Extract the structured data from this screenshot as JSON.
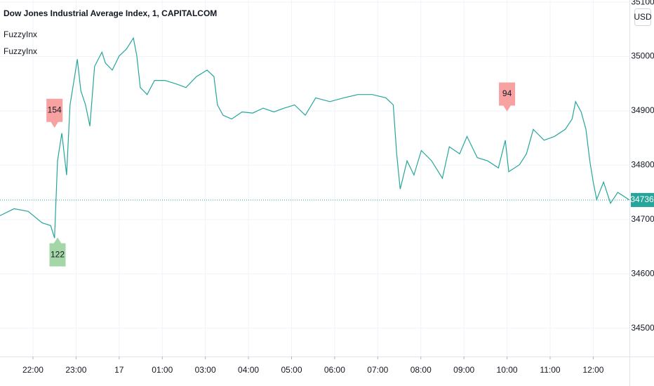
{
  "chart_data": {
    "type": "line",
    "title": "Dow Jones Industrial Average Index, 1, CAPITALCOM",
    "indicators": [
      "FuzzyInx",
      "FuzzyInx"
    ],
    "currency": "USD",
    "color": "#26a69a",
    "x": [
      0.23,
      0.56,
      0.89,
      1.21,
      1.41,
      1.5,
      1.57,
      1.67,
      1.78,
      1.86,
      1.94,
      2.03,
      2.11,
      2.22,
      2.32,
      2.43,
      2.6,
      2.68,
      2.84,
      3.0,
      3.17,
      3.33,
      3.41,
      3.49,
      3.65,
      3.82,
      4.06,
      4.31,
      4.55,
      4.79,
      5.04,
      5.2,
      5.28,
      5.41,
      5.61,
      5.85,
      6.1,
      6.34,
      6.59,
      6.83,
      7.07,
      7.32,
      7.56,
      7.89,
      8.21,
      8.54,
      8.87,
      9.19,
      9.36,
      9.44,
      9.52,
      9.68,
      9.84,
      10.01,
      10.25,
      10.5,
      10.66,
      10.9,
      11.07,
      11.31,
      11.55,
      11.8,
      11.96,
      12.04,
      12.29,
      12.45,
      12.61,
      12.86,
      13.1,
      13.35,
      13.51,
      13.59,
      13.72,
      13.83,
      13.92,
      14.0,
      14.08,
      14.24,
      14.4,
      14.57,
      14.84
    ],
    "values": [
      34707,
      34720,
      34715,
      34694,
      34689,
      34666,
      34808,
      34859,
      34782,
      34911,
      34950,
      34995,
      34937,
      34911,
      34872,
      34982,
      35008,
      34988,
      34975,
      35001,
      35014,
      35034,
      35001,
      34943,
      34930,
      34956,
      34956,
      34950,
      34943,
      34963,
      34975,
      34963,
      34911,
      34892,
      34885,
      34898,
      34896,
      34905,
      34898,
      34905,
      34911,
      34892,
      34924,
      34917,
      34924,
      34930,
      34930,
      34924,
      34911,
      34821,
      34756,
      34808,
      34782,
      34827,
      34808,
      34776,
      34834,
      34821,
      34853,
      34814,
      34808,
      34795,
      34846,
      34788,
      34801,
      34821,
      34866,
      34846,
      34853,
      34866,
      34885,
      34917,
      34898,
      34866,
      34808,
      34769,
      34737,
      34769,
      34730,
      34750,
      34736
    ],
    "last_price": 34736,
    "xlim": [
      0.235,
      14.84
    ],
    "ylim": [
      34448,
      35104
    ],
    "xticks": [
      {
        "value": 1,
        "label": "22:00"
      },
      {
        "value": 2,
        "label": "23:00"
      },
      {
        "value": 3,
        "label": "17"
      },
      {
        "value": 4,
        "label": "01:00"
      },
      {
        "value": 5,
        "label": "03:00"
      },
      {
        "value": 6,
        "label": "04:00"
      },
      {
        "value": 7,
        "label": "05:00"
      },
      {
        "value": 8,
        "label": "06:00"
      },
      {
        "value": 9,
        "label": "07:00"
      },
      {
        "value": 10,
        "label": "08:00"
      },
      {
        "value": 11,
        "label": "09:00"
      },
      {
        "value": 12,
        "label": "10:00"
      },
      {
        "value": 13,
        "label": "11:00"
      },
      {
        "value": 14,
        "label": "12:00"
      }
    ],
    "yticks": [
      34500,
      34600,
      34700,
      34800,
      34900,
      35000,
      35100
    ],
    "grid": true,
    "annotations": [
      {
        "label": 154,
        "x": 1.5,
        "y": 34870,
        "direction": "down",
        "color": "#f7a1a1"
      },
      {
        "label": 122,
        "x": 1.57,
        "y": 34666,
        "direction": "up",
        "color": "#a5d6a7"
      },
      {
        "label": 94,
        "x": 12.0,
        "y": 34900,
        "direction": "down",
        "color": "#f7a1a1"
      }
    ]
  }
}
